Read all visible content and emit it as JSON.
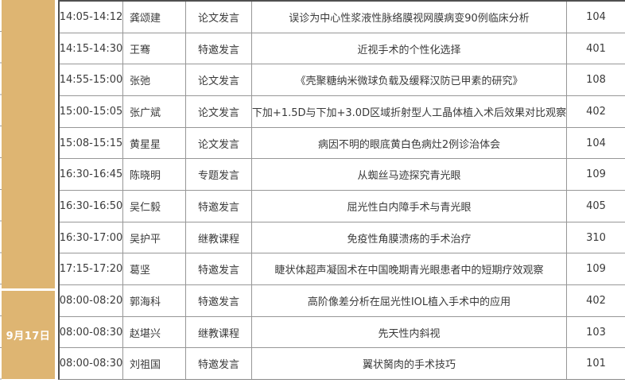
{
  "date_column": {
    "label": "9月17日"
  },
  "colors": {
    "date_bg": "#deb572",
    "date_text": "#ffffff",
    "outer_border": "#4f4f4f",
    "grid_border": "#979797",
    "body_text": "#3a3a3a"
  },
  "rows": [
    {
      "time": "14:05-14:12",
      "name": "龚颂建",
      "type": "论文发言",
      "title": "误诊为中心性浆液性脉络膜视网膜病变90例临床分析",
      "room": "104"
    },
    {
      "time": "14:15-14:30",
      "name": "王骞",
      "type": "特邀发言",
      "title": "近视手术的个性化选择",
      "room": "401"
    },
    {
      "time": "14:55-15:00",
      "name": "张弛",
      "type": "论文发言",
      "title": "《壳聚糖纳米微球负载及缓释汉防已甲素的研究》",
      "room": "108"
    },
    {
      "time": "15:00-15:05",
      "name": "张广斌",
      "type": "论文发言",
      "title": "下加+1.5D与下加+3.0D区域折射型人工晶体植入术后效果对比观察",
      "room": "402"
    },
    {
      "time": "15:08-15:15",
      "name": "黄星星",
      "type": "论文发言",
      "title": "病因不明的眼底黄白色病灶2例诊治体会",
      "room": "104"
    },
    {
      "time": "16:30-16:45",
      "name": "陈晓明",
      "type": "专题发言",
      "title": "从蜘丝马迹探究青光眼",
      "room": "109"
    },
    {
      "time": "16:30-16:50",
      "name": "吴仁毅",
      "type": "特邀发言",
      "title": "屈光性白内障手术与青光眼",
      "room": "405"
    },
    {
      "time": "16:30-17:00",
      "name": "吴护平",
      "type": "继教课程",
      "title": "免疫性角膜溃疡的手术治疗",
      "room": "310"
    },
    {
      "time": "17:15-17:20",
      "name": "葛坚",
      "type": "特邀发言",
      "title": "睫状体超声凝固术在中国晚期青光眼患者中的短期疗效观察",
      "room": "109"
    },
    {
      "time": "08:00-08:20",
      "name": "郭海科",
      "type": "特邀发言",
      "title": "高阶像差分析在屈光性IOL植入手术中的应用",
      "room": "402"
    },
    {
      "time": "08:00-08:30",
      "name": "赵堪兴",
      "type": "继教课程",
      "title": "先天性内斜视",
      "room": "103"
    },
    {
      "time": "08:00-08:30",
      "name": "刘祖国",
      "type": "特邀发言",
      "title": "翼状胬肉的手术技巧",
      "room": "101"
    }
  ]
}
